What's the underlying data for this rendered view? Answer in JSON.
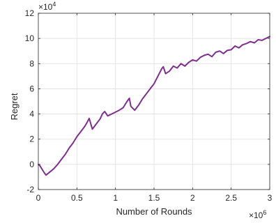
{
  "chart_data": {
    "type": "line",
    "xlabel": "Number of Rounds",
    "ylabel": "Regret",
    "xlim": [
      0,
      3000000
    ],
    "ylim": [
      -20000,
      120000
    ],
    "x_ticks": [
      0,
      500000,
      1000000,
      1500000,
      2000000,
      2500000,
      3000000
    ],
    "x_tick_labels": [
      "0",
      "0.5",
      "1",
      "1.5",
      "2",
      "2.5",
      "3"
    ],
    "x_exponent": "×10",
    "x_exponent_power": "6",
    "y_ticks": [
      -20000,
      0,
      20000,
      40000,
      60000,
      80000,
      100000,
      120000
    ],
    "y_tick_labels": [
      "-2",
      "0",
      "2",
      "4",
      "6",
      "8",
      "10",
      "12"
    ],
    "y_exponent": "×10",
    "y_exponent_power": "4",
    "grid": true,
    "series_color": "#7e2f8e",
    "series": [
      {
        "x": [
          0,
          20000,
          50000,
          80000,
          100000,
          150000,
          200000,
          250000,
          300000,
          350000,
          400000,
          450000,
          500000,
          550000,
          600000,
          630000,
          660000,
          700000,
          750000,
          800000,
          830000,
          860000,
          900000,
          950000,
          1000000,
          1050000,
          1100000,
          1150000,
          1180000,
          1200000,
          1250000,
          1300000,
          1350000,
          1400000,
          1450000,
          1500000,
          1550000,
          1600000,
          1620000,
          1650000,
          1700000,
          1750000,
          1800000,
          1850000,
          1900000,
          1950000,
          2000000,
          2050000,
          2100000,
          2150000,
          2200000,
          2250000,
          2300000,
          2350000,
          2400000,
          2450000,
          2500000,
          2550000,
          2600000,
          2650000,
          2700000,
          2750000,
          2800000,
          2850000,
          2900000,
          2950000,
          3000000
        ],
        "y": [
          0,
          -1000,
          -4000,
          -7000,
          -8500,
          -6000,
          -3500,
          0,
          4000,
          8000,
          13000,
          17000,
          22000,
          26000,
          30000,
          33000,
          36500,
          28000,
          32000,
          36000,
          40000,
          42000,
          38500,
          40000,
          41500,
          43000,
          45000,
          50000,
          52500,
          46000,
          43000,
          47000,
          52000,
          56000,
          60000,
          64000,
          70000,
          76000,
          77500,
          72000,
          74000,
          78000,
          76500,
          80000,
          78000,
          81000,
          83000,
          82000,
          85000,
          86500,
          87500,
          85500,
          89000,
          90000,
          88000,
          90500,
          91000,
          94000,
          92500,
          95000,
          96000,
          97500,
          96500,
          99000,
          98500,
          100000,
          101500
        ]
      }
    ]
  }
}
